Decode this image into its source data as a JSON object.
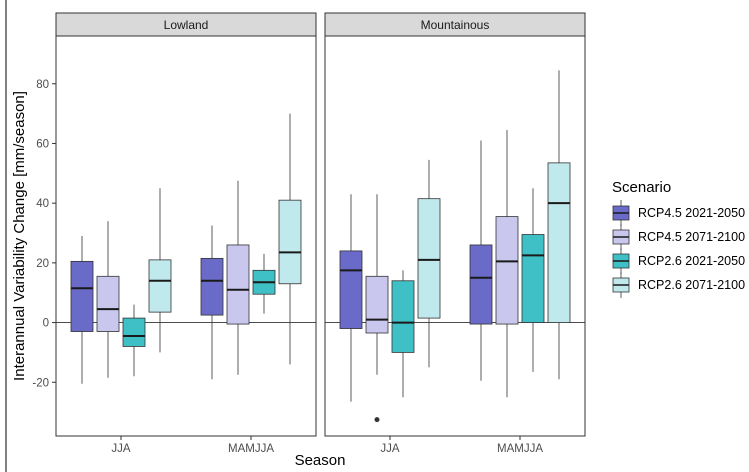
{
  "chart_data": {
    "type": "boxplot",
    "xlabel": "Season",
    "ylabel": "Interannual Variability Change [mm/season]",
    "ylim": [
      -38,
      96
    ],
    "yticks": [
      -20,
      0,
      20,
      40,
      60,
      80
    ],
    "reference_line": 0,
    "grid": false,
    "legend": {
      "title": "Scenario",
      "placement": "right",
      "entries": [
        {
          "label": "RCP4.5 2021-2050",
          "color": "#6a6bc8"
        },
        {
          "label": "RCP4.5 2071-2100",
          "color": "#c9c7ee"
        },
        {
          "label": "RCP2.6 2021-2050",
          "color": "#3ec0c6"
        },
        {
          "label": "RCP2.6 2071-2100",
          "color": "#bfe9ec"
        }
      ]
    },
    "panels": [
      {
        "title": "Lowland",
        "categories": [
          "JJA",
          "MAMJJA"
        ],
        "boxes": [
          [
            {
              "series": 0,
              "min": -20.5,
              "q1": -3,
              "median": 11.5,
              "q3": 20.5,
              "max": 29,
              "outliers": []
            },
            {
              "series": 1,
              "min": -18.5,
              "q1": -3,
              "median": 4.5,
              "q3": 15.5,
              "max": 34,
              "outliers": []
            },
            {
              "series": 2,
              "min": -18,
              "q1": -8,
              "median": -4.5,
              "q3": 1.5,
              "max": 6,
              "outliers": []
            },
            {
              "series": 3,
              "min": -10,
              "q1": 3.5,
              "median": 14,
              "q3": 21,
              "max": 45,
              "outliers": []
            }
          ],
          [
            {
              "series": 0,
              "min": -19,
              "q1": 2.5,
              "median": 14,
              "q3": 21.5,
              "max": 32.5,
              "outliers": []
            },
            {
              "series": 1,
              "min": -17.5,
              "q1": -0.5,
              "median": 11,
              "q3": 26,
              "max": 47.5,
              "outliers": []
            },
            {
              "series": 2,
              "min": 3,
              "q1": 9.5,
              "median": 13.5,
              "q3": 17.5,
              "max": 23,
              "outliers": []
            },
            {
              "series": 3,
              "min": -14,
              "q1": 13,
              "median": 23.5,
              "q3": 41,
              "max": 70,
              "outliers": []
            }
          ]
        ]
      },
      {
        "title": "Mountainous",
        "categories": [
          "JJA",
          "MAMJJA"
        ],
        "boxes": [
          [
            {
              "series": 0,
              "min": -26.5,
              "q1": -2,
              "median": 17.5,
              "q3": 24,
              "max": 43,
              "outliers": []
            },
            {
              "series": 1,
              "min": -17.5,
              "q1": -3.5,
              "median": 1,
              "q3": 15.5,
              "max": 43,
              "outliers": [
                -32.5
              ]
            },
            {
              "series": 2,
              "min": -25,
              "q1": -10,
              "median": 0,
              "q3": 14,
              "max": 17.5,
              "outliers": []
            },
            {
              "series": 3,
              "min": -15,
              "q1": 1.5,
              "median": 21,
              "q3": 41.5,
              "max": 54.5,
              "outliers": []
            }
          ],
          [
            {
              "series": 0,
              "min": -19.5,
              "q1": -0.5,
              "median": 15,
              "q3": 26,
              "max": 61,
              "outliers": []
            },
            {
              "series": 1,
              "min": -25,
              "q1": -0.5,
              "median": 20.5,
              "q3": 35.5,
              "max": 64.5,
              "outliers": []
            },
            {
              "series": 2,
              "min": -16.5,
              "q1": 0,
              "median": 22.5,
              "q3": 29.5,
              "max": 45,
              "outliers": []
            },
            {
              "series": 3,
              "min": -19,
              "q1": 0,
              "median": 40,
              "q3": 53.5,
              "max": 84.5,
              "outliers": []
            }
          ]
        ]
      }
    ]
  }
}
